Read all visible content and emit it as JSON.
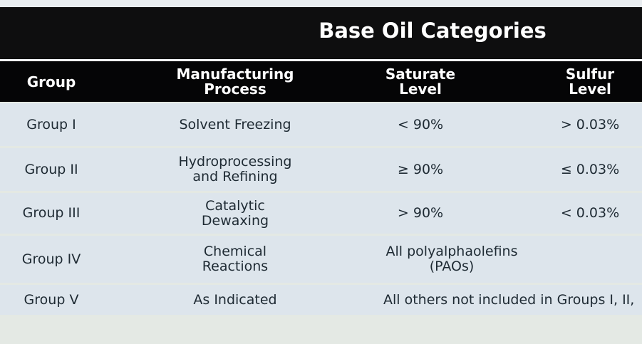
{
  "title": "Base Oil Categories",
  "table": {
    "header": [
      [
        "Group"
      ],
      [
        "Manufacturing",
        "Process"
      ],
      [
        "Saturate",
        "Level"
      ],
      [
        "Sulfur",
        "Level"
      ]
    ],
    "rows": [
      [
        [
          "Group I"
        ],
        [
          "Solvent Freezing"
        ],
        [
          "< 90%"
        ],
        [
          "> 0.03%"
        ]
      ],
      [
        [
          "Group II"
        ],
        [
          "Hydroprocessing",
          "and Refining"
        ],
        [
          "≥ 90%"
        ],
        [
          "≤ 0.03%"
        ]
      ],
      [
        [
          "Group III"
        ],
        [
          "Catalytic",
          "Dewaxing"
        ],
        [
          "> 90%"
        ],
        [
          "< 0.03%"
        ]
      ],
      [
        [
          "Group IV"
        ],
        [
          "Chemical",
          "Reactions"
        ],
        [
          "All polyalphaolefins",
          "(PAOs)"
        ]
      ],
      [
        [
          "Group V"
        ],
        [
          "As Indicated"
        ],
        [
          "All others not included in Groups I, II,"
        ]
      ]
    ]
  }
}
